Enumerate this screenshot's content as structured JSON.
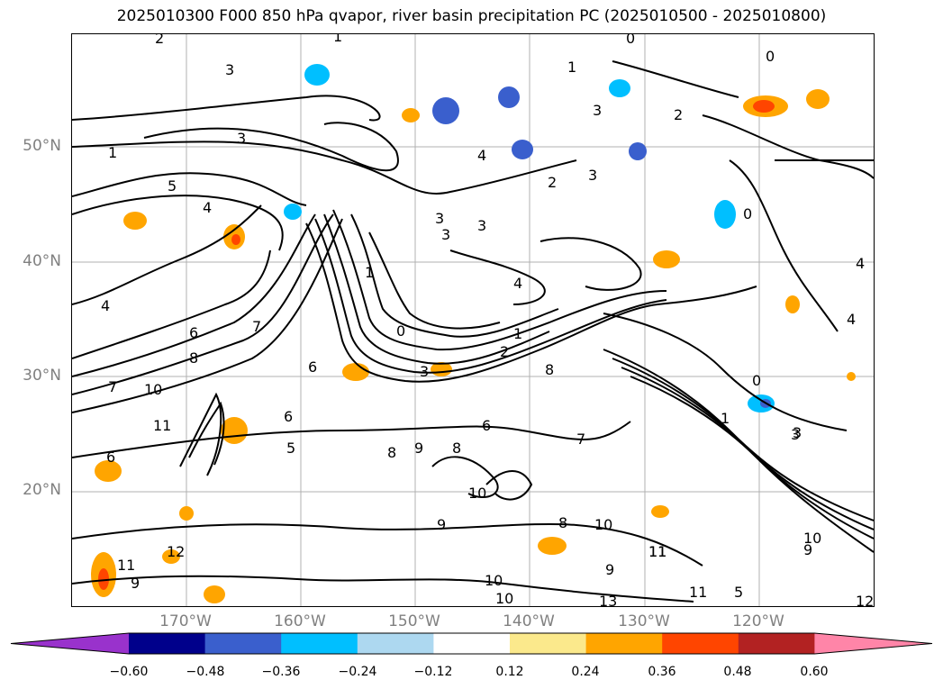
{
  "title": "2025010300 F000 850 hPa qvapor, river basin precipitation PC (2025010500 - 2025010800)",
  "lat_labels": [
    "50°N",
    "40°N",
    "30°N",
    "20°N"
  ],
  "lon_labels": [
    "170°W",
    "160°W",
    "150°W",
    "140°W",
    "130°W",
    "120°W"
  ],
  "colorbar": {
    "ticks": [
      "−0.60",
      "−0.48",
      "−0.36",
      "−0.24",
      "−0.12",
      "0.12",
      "0.24",
      "0.36",
      "0.48",
      "0.60"
    ],
    "colors": [
      "#9932cc",
      "#00008b",
      "#3a5fcd",
      "#00bfff",
      "#add8f0",
      "#ffffff",
      "#fbe98c",
      "#ffa500",
      "#ff4500",
      "#b22222",
      "#ff85a8"
    ]
  },
  "contour_labels": [
    "2",
    "1",
    "3",
    "0",
    "1",
    "0",
    "0",
    "3",
    "3",
    "2",
    "1",
    "3",
    "4",
    "3",
    "4",
    "2",
    "3",
    "4",
    "5",
    "4",
    "3",
    "3",
    "4",
    "1",
    "4",
    "0",
    "1",
    "2",
    "3",
    "6",
    "7",
    "8",
    "7",
    "11",
    "10",
    "6",
    "8",
    "8",
    "6",
    "5",
    "6",
    "9",
    "8",
    "7",
    "10",
    "9",
    "8",
    "10",
    "11",
    "9",
    "10",
    "13",
    "11",
    "10",
    "9",
    "12",
    "11",
    "6",
    "0",
    "1",
    "3",
    "9",
    "10",
    "11",
    "5",
    "12"
  ]
}
